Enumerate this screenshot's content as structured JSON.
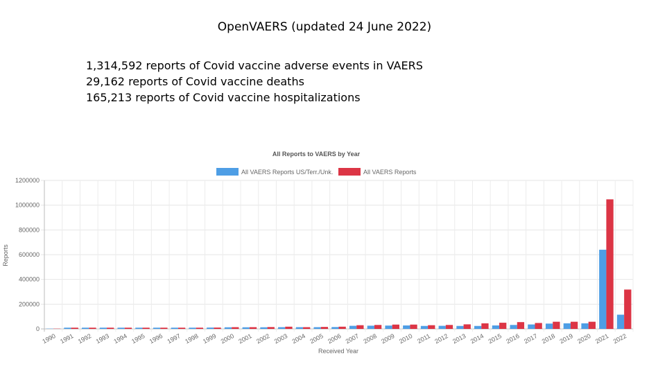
{
  "slide": {
    "title": "OpenVAERS (updated 24 June 2022)",
    "summary_lines": [
      "1,314,592 reports of Covid vaccine adverse events in VAERS",
      "29,162 reports of Covid vaccine deaths",
      "165,213 reports of Covid vaccine hospitalizations"
    ]
  },
  "chart_data": {
    "type": "bar",
    "title": "All Reports to VAERS by Year",
    "xlabel": "Received Year",
    "ylabel": "Reports",
    "ylim": [
      0,
      1200000
    ],
    "yticks": [
      0,
      200000,
      400000,
      600000,
      800000,
      1000000,
      1200000
    ],
    "grid": true,
    "legend_position": "top-center",
    "categories": [
      "1990",
      "1991",
      "1992",
      "1993",
      "1994",
      "1995",
      "1996",
      "1997",
      "1998",
      "1999",
      "2000",
      "2001",
      "2002",
      "2003",
      "2004",
      "2005",
      "2006",
      "2007",
      "2008",
      "2009",
      "2010",
      "2011",
      "2012",
      "2013",
      "2014",
      "2015",
      "2016",
      "2017",
      "2018",
      "2019",
      "2020",
      "2021",
      "2022"
    ],
    "series": [
      {
        "name": "All VAERS Reports US/Terr./Unk.",
        "color": "#4e9ee5",
        "values": [
          2000,
          10000,
          10000,
          10000,
          10000,
          10000,
          10000,
          10000,
          10000,
          11000,
          13000,
          13000,
          13000,
          14000,
          14000,
          14000,
          15000,
          25000,
          26000,
          27000,
          28000,
          24000,
          25000,
          24000,
          24000,
          28000,
          32000,
          36000,
          43000,
          45000,
          45000,
          640000,
          115000
        ]
      },
      {
        "name": "All VAERS Reports",
        "color": "#dc3545",
        "values": [
          2000,
          10000,
          10000,
          10000,
          10000,
          10000,
          10000,
          10000,
          10000,
          11000,
          14000,
          14000,
          15000,
          18000,
          14000,
          16000,
          18000,
          30000,
          32000,
          35000,
          35000,
          30000,
          32000,
          37000,
          45000,
          50000,
          55000,
          48000,
          58000,
          58000,
          58000,
          1047000,
          318000
        ]
      }
    ]
  }
}
